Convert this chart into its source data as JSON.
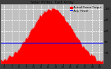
{
  "title": "Solar PV/Inv. East Array",
  "legend_actual": "Actual Power Output",
  "legend_avg": "Avg. Power",
  "bg_color": "#404040",
  "plot_bg_color": "#c0c0c0",
  "fill_color": "#ff0000",
  "line_color": "#ff0000",
  "avg_line_color": "#0000ff",
  "grid_color": "#ffffff",
  "text_color": "#000000",
  "title_color": "#000000",
  "n_points": 200,
  "peak_power": 100,
  "avg_power": 38,
  "x_start": 5.5,
  "x_end": 19.5,
  "xlim": [
    5.5,
    19.5
  ],
  "ylim": [
    0,
    108
  ],
  "y_ticks": [
    20,
    40,
    60,
    80,
    100
  ],
  "x_ticks": [
    6,
    7,
    8,
    9,
    10,
    11,
    12,
    13,
    14,
    15,
    16,
    17,
    18,
    19
  ],
  "peak_hour": 12.5,
  "sigma": 2.8
}
